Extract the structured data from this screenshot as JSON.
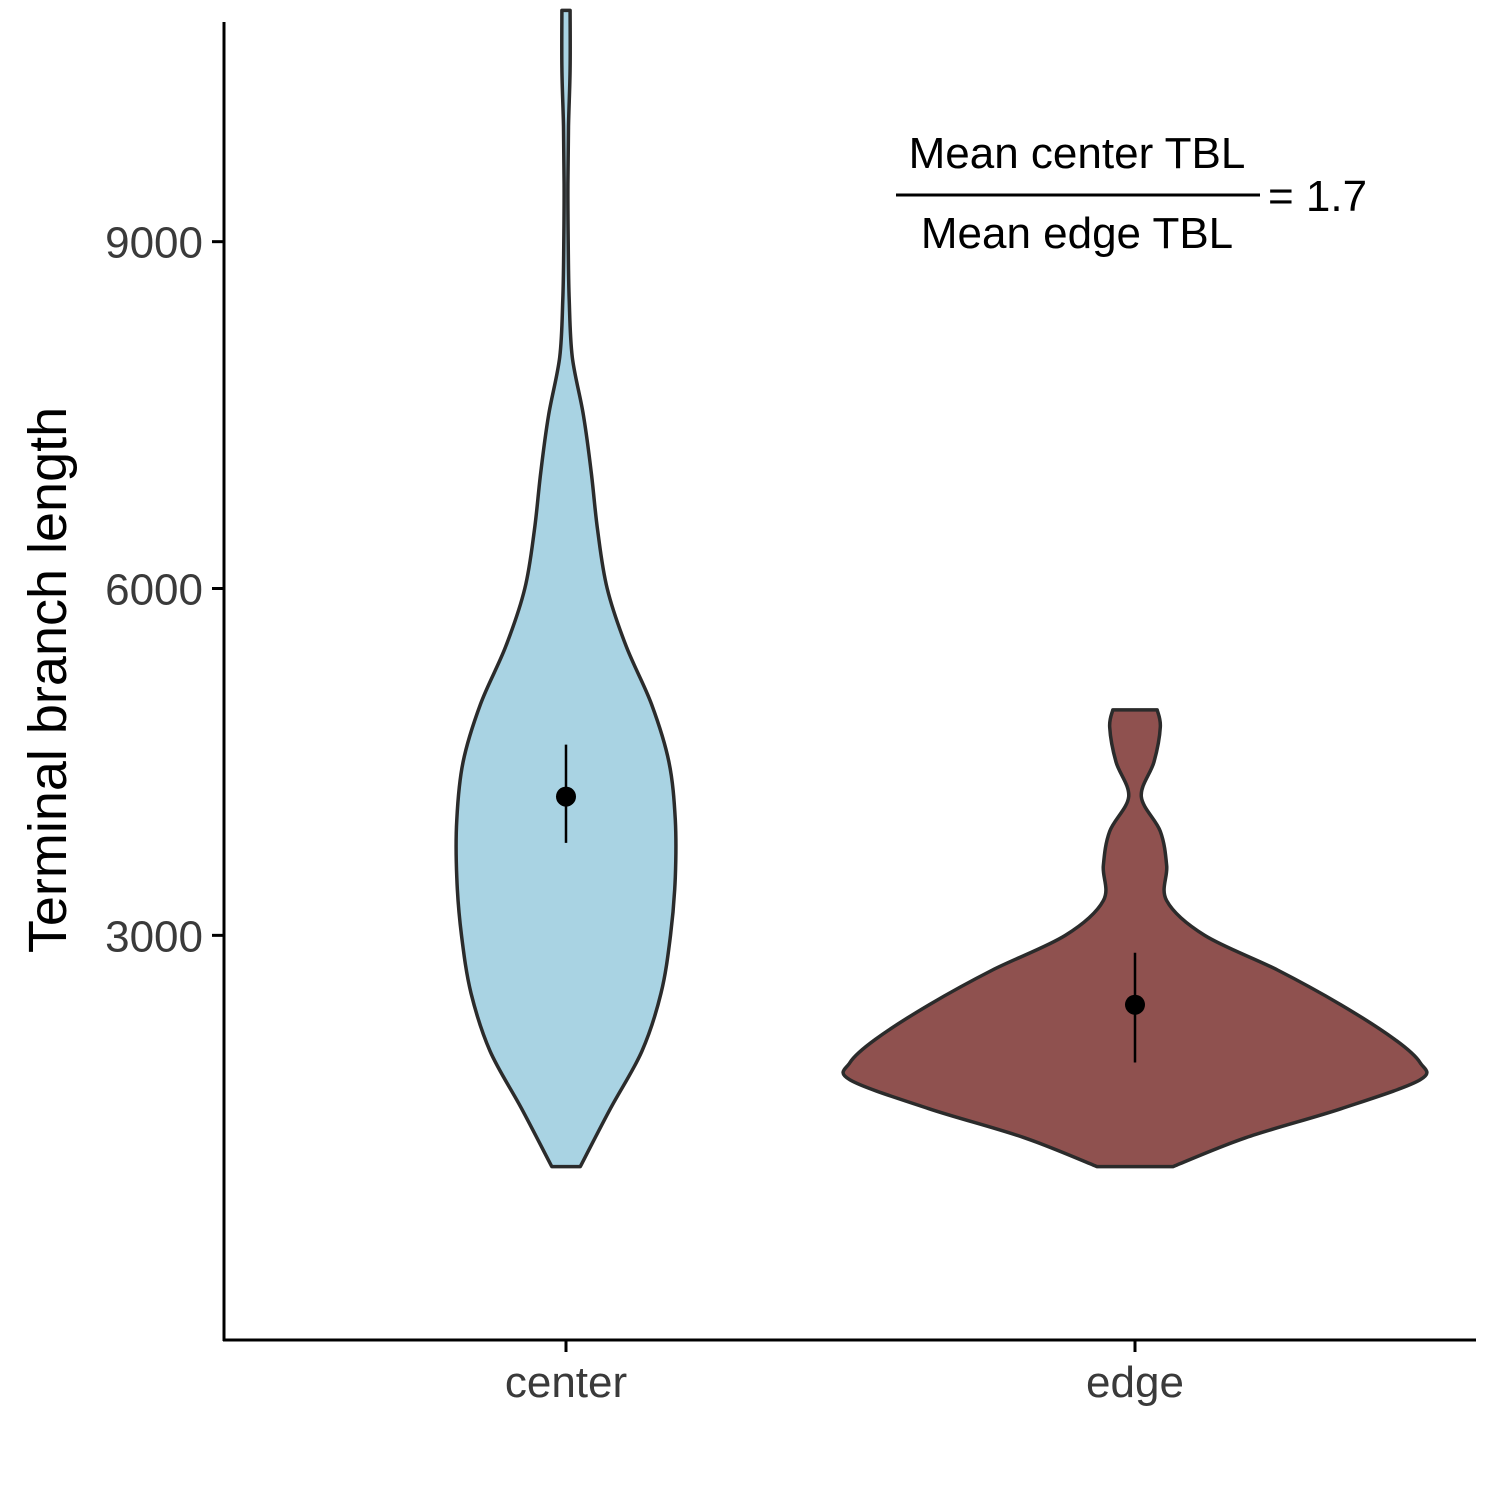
{
  "chart_data": {
    "type": "violin",
    "title": "",
    "xlabel": "",
    "ylabel": "Terminal branch length",
    "categories": [
      "center",
      "edge"
    ],
    "yticks": [
      3000,
      6000,
      9000
    ],
    "ylim": [
      -500,
      10900
    ],
    "grid": false,
    "legend": "none",
    "series": [
      {
        "category": "center",
        "fill": "#a9d3e3",
        "mean": 4200,
        "ci": [
          3800,
          4650
        ],
        "density": [
          [
            1000,
            0.045
          ],
          [
            1500,
            0.14
          ],
          [
            2000,
            0.24
          ],
          [
            2500,
            0.3
          ],
          [
            3000,
            0.33
          ],
          [
            3500,
            0.345
          ],
          [
            4000,
            0.345
          ],
          [
            4500,
            0.325
          ],
          [
            5000,
            0.27
          ],
          [
            5500,
            0.19
          ],
          [
            6000,
            0.13
          ],
          [
            6500,
            0.1
          ],
          [
            7000,
            0.08
          ],
          [
            7500,
            0.055
          ],
          [
            8000,
            0.02
          ],
          [
            8500,
            0.01
          ],
          [
            9000,
            0.007
          ],
          [
            9500,
            0.006
          ],
          [
            10000,
            0.008
          ],
          [
            10500,
            0.013
          ],
          [
            11000,
            0.013
          ]
        ]
      },
      {
        "category": "edge",
        "fill": "#8f514f",
        "mean": 2400,
        "ci": [
          1900,
          2850
        ],
        "density": [
          [
            1000,
            0.12
          ],
          [
            1250,
            0.35
          ],
          [
            1500,
            0.65
          ],
          [
            1750,
            0.9
          ],
          [
            1900,
            0.9
          ],
          [
            2100,
            0.82
          ],
          [
            2400,
            0.65
          ],
          [
            2700,
            0.45
          ],
          [
            3000,
            0.22
          ],
          [
            3300,
            0.1
          ],
          [
            3600,
            0.1
          ],
          [
            3900,
            0.08
          ],
          [
            4200,
            0.02
          ],
          [
            4500,
            0.06
          ],
          [
            4800,
            0.08
          ],
          [
            4950,
            0.07
          ]
        ]
      }
    ],
    "annotation": {
      "numerator": "Mean center TBL",
      "denominator": "Mean edge TBL",
      "equals_text": "= 1.7"
    }
  }
}
